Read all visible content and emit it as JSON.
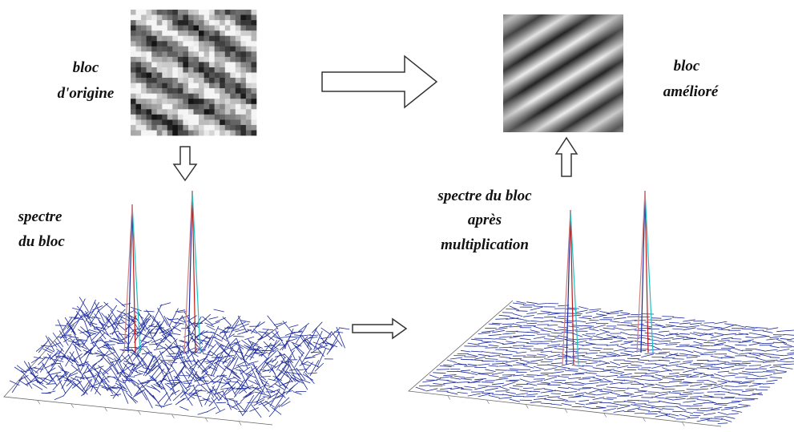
{
  "labels": {
    "original": [
      "bloc",
      "d'origine"
    ],
    "enhanced": [
      "bloc",
      "amélioré"
    ],
    "spectrum": [
      "spectre",
      "du bloc"
    ],
    "filtered_spectrum": [
      "spectre du bloc",
      "après",
      "multiplication"
    ]
  }
}
